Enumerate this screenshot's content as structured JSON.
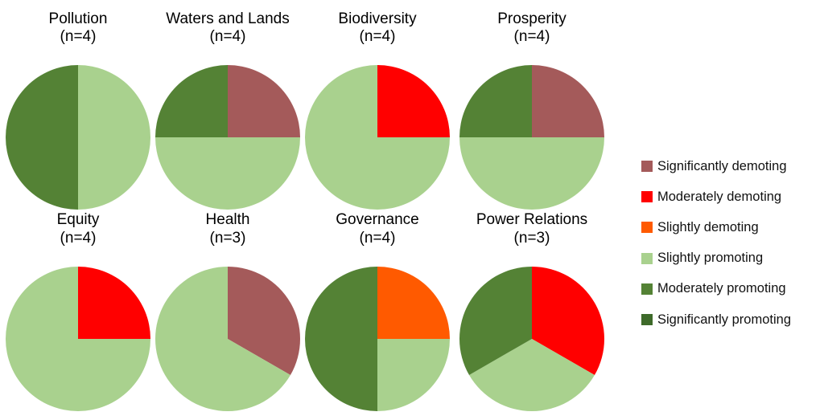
{
  "chart_data": {
    "type": "pie",
    "categories": [
      "Significantly demoting",
      "Moderately demoting",
      "Slightly demoting",
      "Slightly promoting",
      "Moderately promoting",
      "Significantly promoting"
    ],
    "colors": {
      "Significantly demoting": "#a45a5a",
      "Moderately demoting": "#ff0000",
      "Slightly demoting": "#ff5a00",
      "Slightly promoting": "#a9d18e",
      "Moderately promoting": "#548235",
      "Significantly promoting": "#3e6a2a"
    },
    "pies": [
      {
        "title": "Pollution",
        "n_label": "(n=4)",
        "values": {
          "Slightly promoting": 2,
          "Moderately promoting": 2
        }
      },
      {
        "title": "Waters and Lands",
        "n_label": "(n=4)",
        "values": {
          "Significantly demoting": 1,
          "Slightly promoting": 2,
          "Moderately promoting": 1
        }
      },
      {
        "title": "Biodiversity",
        "n_label": "(n=4)",
        "values": {
          "Moderately demoting": 1,
          "Slightly promoting": 3
        }
      },
      {
        "title": "Prosperity",
        "n_label": "(n=4)",
        "values": {
          "Significantly demoting": 1,
          "Slightly promoting": 2,
          "Moderately promoting": 1
        }
      },
      {
        "title": "Equity",
        "n_label": "(n=4)",
        "values": {
          "Moderately demoting": 1,
          "Slightly promoting": 3
        }
      },
      {
        "title": "Health",
        "n_label": "(n=3)",
        "values": {
          "Significantly demoting": 1,
          "Slightly promoting": 2
        }
      },
      {
        "title": "Governance",
        "n_label": "(n=4)",
        "values": {
          "Slightly demoting": 1,
          "Slightly promoting": 1,
          "Moderately promoting": 2
        }
      },
      {
        "title": "Power Relations",
        "n_label": "(n=3)",
        "values": {
          "Moderately demoting": 1,
          "Slightly promoting": 1,
          "Moderately promoting": 1
        }
      }
    ],
    "legend": [
      "Significantly demoting",
      "Moderately demoting",
      "Slightly demoting",
      "Slightly promoting",
      "Moderately promoting",
      "Significantly promoting"
    ],
    "legend_position": "right"
  }
}
